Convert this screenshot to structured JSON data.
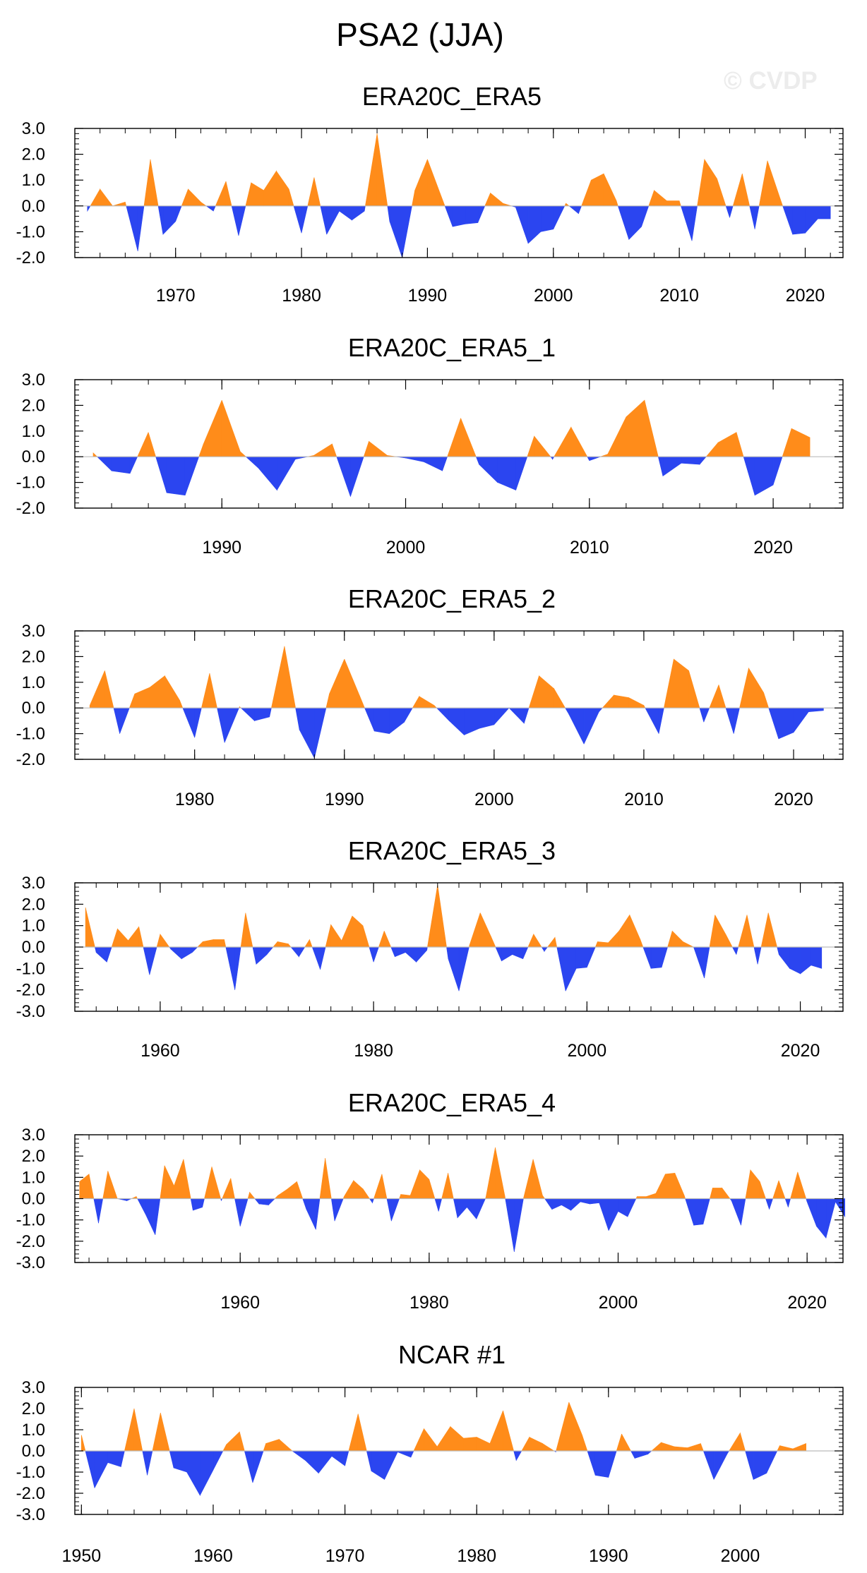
{
  "figure": {
    "title": "PSA2 (JJA)",
    "watermark": "© CVDP",
    "colors": {
      "positive": "#ff8c1a",
      "negative": "#2b45f0",
      "frame": "#000000",
      "zero_line": "#bbbbbb"
    }
  },
  "chart_data": [
    {
      "type": "area",
      "title": "ERA20C_ERA5",
      "xlabel": "",
      "ylabel": "",
      "xlim": [
        1962,
        2023
      ],
      "ylim": [
        -2.0,
        3.0
      ],
      "yticks": [
        -2.0,
        -1.0,
        0.0,
        1.0,
        2.0,
        3.0
      ],
      "ytick_labels": [
        "-2.0",
        "-1.0",
        "0.0",
        "1.0",
        "2.0",
        "3.0"
      ],
      "xticks": [
        1970,
        1980,
        1990,
        2000,
        2010,
        2020
      ],
      "xtick_labels": [
        "1970",
        "1980",
        "1990",
        "2000",
        "2010",
        "2020"
      ],
      "x_start": 1963,
      "values": [
        -0.2,
        0.65,
        0.0,
        0.15,
        -1.75,
        1.8,
        -1.1,
        -0.6,
        0.65,
        0.15,
        -0.2,
        0.95,
        -1.15,
        0.9,
        0.6,
        1.35,
        0.65,
        -1.05,
        1.1,
        -1.1,
        -0.2,
        -0.55,
        -0.2,
        2.8,
        -0.6,
        -2.0,
        0.6,
        1.8,
        0.5,
        -0.8,
        -0.7,
        -0.65,
        0.5,
        0.1,
        -0.05,
        -1.45,
        -1.0,
        -0.9,
        0.1,
        -0.3,
        1.0,
        1.25,
        0.2,
        -1.3,
        -0.8,
        0.6,
        0.2,
        0.2,
        -1.35,
        1.8,
        1.05,
        -0.45,
        1.25,
        -0.9,
        1.75,
        0.3,
        -1.1,
        -1.05,
        -0.5,
        -0.5
      ]
    },
    {
      "type": "area",
      "title": "ERA20C_ERA5_1",
      "xlabel": "",
      "ylabel": "",
      "xlim": [
        1982,
        2023.8
      ],
      "ylim": [
        -2.0,
        3.0
      ],
      "yticks": [
        -2.0,
        -1.0,
        0.0,
        1.0,
        2.0,
        3.0
      ],
      "ytick_labels": [
        "-2.0",
        "-1.0",
        "0.0",
        "1.0",
        "2.0",
        "3.0"
      ],
      "xticks": [
        1990,
        2000,
        2010,
        2020
      ],
      "xtick_labels": [
        "1990",
        "2000",
        "2010",
        "2020"
      ],
      "x_start": 1983,
      "values": [
        0.15,
        -0.55,
        -0.65,
        0.95,
        -1.4,
        -1.5,
        0.5,
        2.2,
        0.2,
        -0.45,
        -1.3,
        -0.1,
        0.05,
        0.5,
        -1.55,
        0.6,
        0.05,
        -0.05,
        -0.2,
        -0.55,
        1.5,
        -0.3,
        -1.0,
        -1.3,
        0.8,
        -0.1,
        1.15,
        -0.15,
        0.1,
        1.55,
        2.2,
        -0.75,
        -0.25,
        -0.3,
        0.55,
        0.95,
        -1.5,
        -1.1,
        1.1,
        0.75
      ]
    },
    {
      "type": "area",
      "title": "ERA20C_ERA5_2",
      "xlabel": "",
      "ylabel": "",
      "xlim": [
        1972,
        2023.3
      ],
      "ylim": [
        -2.0,
        3.0
      ],
      "yticks": [
        -2.0,
        -1.0,
        0.0,
        1.0,
        2.0,
        3.0
      ],
      "ytick_labels": [
        "-2.0",
        "-1.0",
        "0.0",
        "1.0",
        "2.0",
        "3.0"
      ],
      "xticks": [
        1980,
        1990,
        2000,
        2010,
        2020
      ],
      "xtick_labels": [
        "1980",
        "1990",
        "2000",
        "2010",
        "2020"
      ],
      "x_start": 1973,
      "values": [
        0.1,
        1.45,
        -1.0,
        0.55,
        0.8,
        1.25,
        0.3,
        -1.15,
        1.35,
        -1.35,
        0.05,
        -0.5,
        -0.35,
        2.4,
        -0.85,
        -1.95,
        0.55,
        1.9,
        0.5,
        -0.9,
        -1.0,
        -0.55,
        0.45,
        0.1,
        -0.5,
        -1.05,
        -0.8,
        -0.65,
        0.0,
        -0.6,
        1.25,
        0.75,
        -0.25,
        -1.4,
        -0.15,
        0.5,
        0.4,
        0.1,
        -1.0,
        1.9,
        1.45,
        -0.55,
        0.9,
        -1.0,
        1.55,
        0.6,
        -1.2,
        -0.95,
        -0.15,
        -0.1
      ]
    },
    {
      "type": "area",
      "title": "ERA20C_ERA5_3",
      "xlabel": "",
      "ylabel": "",
      "xlim": [
        1952,
        2024
      ],
      "ylim": [
        -3.0,
        3.0
      ],
      "yticks": [
        -3.0,
        -2.0,
        -1.0,
        0.0,
        1.0,
        2.0,
        3.0
      ],
      "ytick_labels": [
        "-3.0",
        "-2.0",
        "-1.0",
        "0.0",
        "1.0",
        "2.0",
        "3.0"
      ],
      "xticks": [
        1960,
        1980,
        2000,
        2020
      ],
      "xtick_labels": [
        "1960",
        "1980",
        "2000",
        "2020"
      ],
      "x_start": 1953,
      "values": [
        1.85,
        -0.25,
        -0.7,
        0.85,
        0.3,
        0.95,
        -1.3,
        0.6,
        -0.1,
        -0.55,
        -0.25,
        0.25,
        0.35,
        0.35,
        -2.0,
        1.6,
        -0.8,
        -0.35,
        0.25,
        0.15,
        -0.45,
        0.35,
        -1.05,
        1.05,
        0.3,
        1.45,
        1.0,
        -0.7,
        0.75,
        -0.45,
        -0.25,
        -0.7,
        -0.15,
        2.9,
        -0.55,
        -2.05,
        0.1,
        1.6,
        0.5,
        -0.65,
        -0.35,
        -0.55,
        0.6,
        -0.2,
        0.45,
        -2.05,
        -1.0,
        -0.95,
        0.25,
        0.2,
        0.75,
        1.5,
        0.35,
        -1.0,
        -0.95,
        0.75,
        0.25,
        0.0,
        -1.45,
        1.5,
        0.6,
        -0.35,
        1.5,
        -0.8,
        1.6,
        -0.35,
        -1.0,
        -1.25,
        -0.85,
        -1.0
      ]
    },
    {
      "type": "area",
      "title": "ERA20C_ERA5_4",
      "xlabel": "",
      "ylabel": "",
      "xlim": [
        1942.5,
        2023.8
      ],
      "ylim": [
        -3.0,
        3.0
      ],
      "yticks": [
        -3.0,
        -2.0,
        -1.0,
        0.0,
        1.0,
        2.0,
        3.0
      ],
      "ytick_labels": [
        "-3.0",
        "-2.0",
        "-1.0",
        "0.0",
        "1.0",
        "2.0",
        "3.0"
      ],
      "xticks": [
        1960,
        1980,
        2000,
        2020
      ],
      "xtick_labels": [
        "1960",
        "1980",
        "2000",
        "2020"
      ],
      "x_start": 1943,
      "values": [
        0.8,
        1.15,
        -1.15,
        1.3,
        0.0,
        -0.1,
        0.1,
        -0.75,
        -1.7,
        1.55,
        0.6,
        1.85,
        -0.55,
        -0.4,
        1.5,
        -0.1,
        0.95,
        -1.3,
        0.3,
        -0.25,
        -0.3,
        0.15,
        0.45,
        0.8,
        -0.5,
        -1.45,
        1.9,
        -1.05,
        0.1,
        0.85,
        0.45,
        -0.2,
        1.15,
        -1.05,
        0.2,
        0.15,
        1.35,
        0.9,
        -0.6,
        1.2,
        -0.9,
        -0.4,
        -0.95,
        0.05,
        2.4,
        0.15,
        -2.5,
        0.05,
        1.85,
        0.15,
        -0.5,
        -0.3,
        -0.55,
        -0.15,
        -0.25,
        -0.2,
        -1.5,
        -0.6,
        -0.85,
        0.1,
        0.1,
        0.25,
        1.15,
        1.2,
        0.15,
        -1.25,
        -1.2,
        0.5,
        0.5,
        -0.1,
        -1.25,
        1.35,
        0.8,
        -0.5,
        0.85,
        -0.4,
        1.25,
        -0.15,
        -1.3,
        -1.85,
        -0.15,
        -0.85
      ]
    },
    {
      "type": "area",
      "title": "NCAR #1",
      "xlabel": "",
      "ylabel": "",
      "xlim": [
        1949.5,
        2007.8
      ],
      "ylim": [
        -3.0,
        3.0
      ],
      "yticks": [
        -3.0,
        -2.0,
        -1.0,
        0.0,
        1.0,
        2.0,
        3.0
      ],
      "ytick_labels": [
        "-3.0",
        "-2.0",
        "-1.0",
        "0.0",
        "1.0",
        "2.0",
        "3.0"
      ],
      "xticks": [
        1950,
        1960,
        1970,
        1980,
        1990,
        2000
      ],
      "xtick_labels": [
        "1950",
        "1960",
        "1970",
        "1980",
        "1990",
        "2000"
      ],
      "x_start": 1950,
      "values": [
        0.75,
        -1.75,
        -0.55,
        -0.75,
        2.0,
        -1.15,
        1.8,
        -0.8,
        -1.0,
        -2.1,
        -0.9,
        0.3,
        0.9,
        -1.5,
        0.35,
        0.55,
        0.0,
        -0.45,
        -1.05,
        -0.25,
        -0.7,
        1.75,
        -0.95,
        -1.35,
        -0.05,
        -0.3,
        1.05,
        0.2,
        1.15,
        0.6,
        0.65,
        0.35,
        1.9,
        -0.45,
        0.65,
        0.35,
        -0.05,
        2.3,
        0.75,
        -1.15,
        -1.25,
        0.8,
        -0.35,
        -0.15,
        0.4,
        0.2,
        0.15,
        0.35,
        -1.35,
        -0.15,
        0.85,
        -1.35,
        -1.05,
        0.25,
        0.1,
        0.35
      ]
    }
  ]
}
